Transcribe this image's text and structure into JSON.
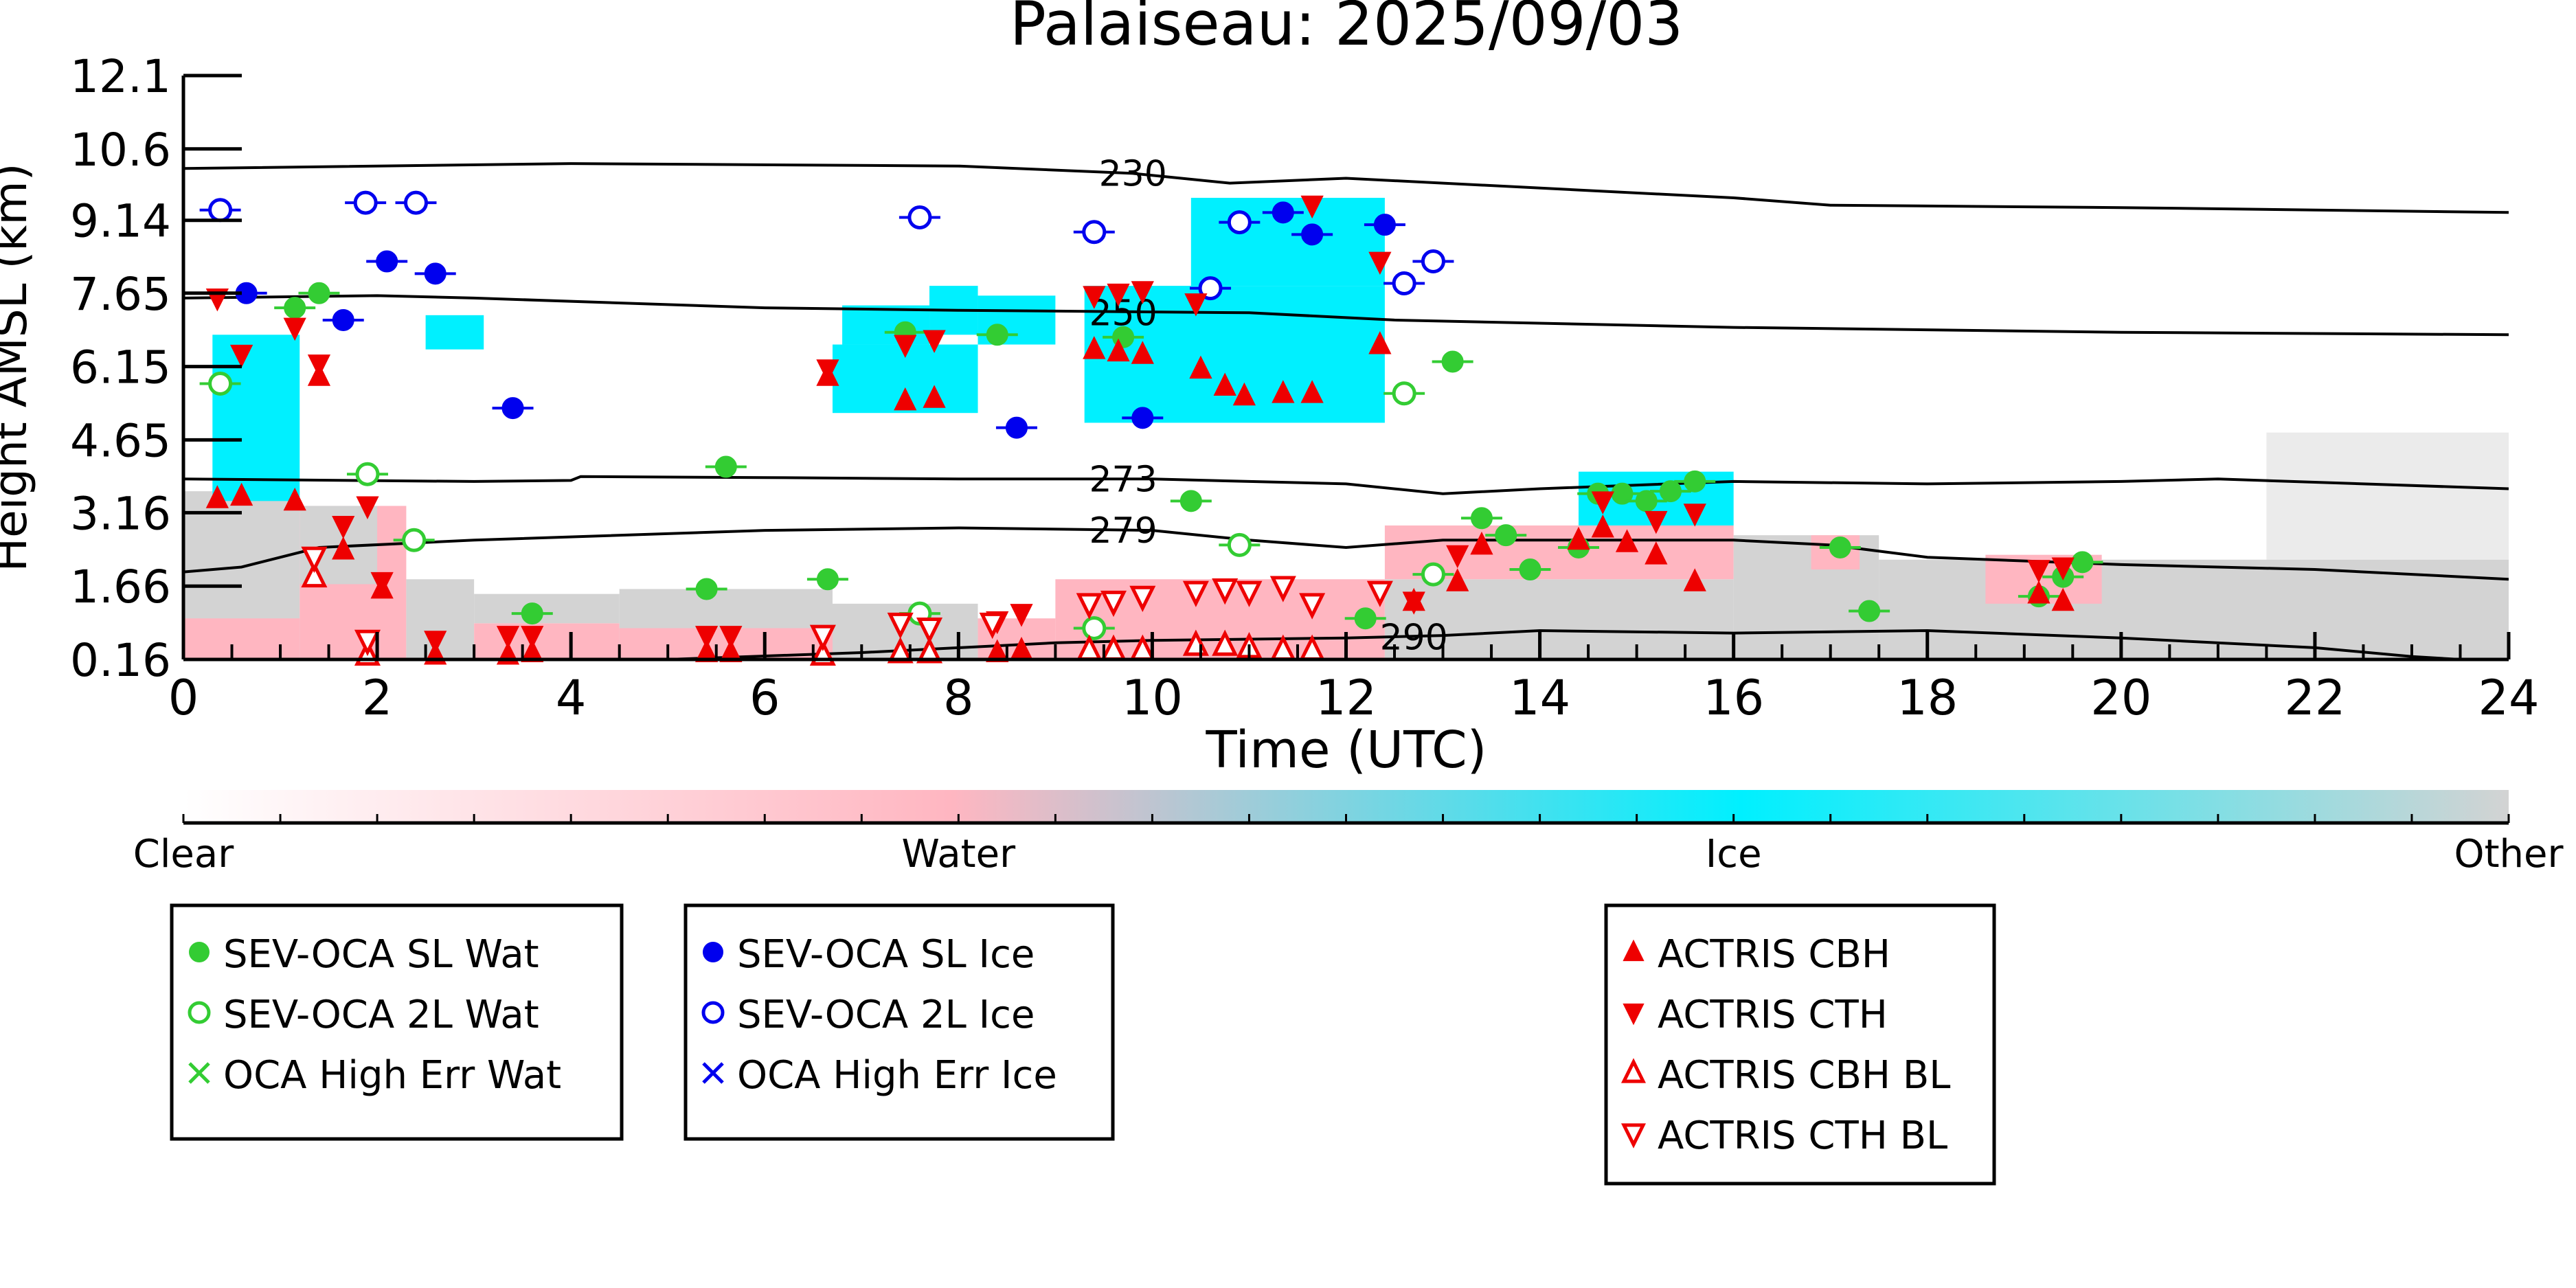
{
  "chart_data": {
    "type": "scatter",
    "title": "Palaiseau: 2025/09/03",
    "xlabel": "Time (UTC)",
    "ylabel": "Height AMSL (km)",
    "xlim": [
      0,
      24
    ],
    "ylim": [
      0.16,
      12.1
    ],
    "x_ticks": [
      "0",
      "2",
      "4",
      "6",
      "8",
      "10",
      "12",
      "14",
      "16",
      "18",
      "20",
      "22",
      "24"
    ],
    "y_ticks": [
      "0.16",
      "1.66",
      "3.16",
      "4.65",
      "6.15",
      "7.65",
      "9.14",
      "10.6",
      "12.1"
    ],
    "y_tick_values": [
      0.16,
      1.66,
      3.16,
      4.65,
      6.15,
      7.65,
      9.14,
      10.6,
      12.1
    ],
    "colorbar": {
      "labels": [
        "Clear",
        "Water",
        "Ice",
        "Other"
      ],
      "colors": {
        "clear": "#ffffff",
        "water": "#ffb6c1",
        "ice": "#00f0ff",
        "other": "#d3d3d3"
      }
    },
    "contours": [
      {
        "label": "230",
        "points": [
          [
            0,
            10.2
          ],
          [
            4,
            10.3
          ],
          [
            8,
            10.25
          ],
          [
            9.8,
            10.1
          ],
          [
            10.8,
            9.9
          ],
          [
            12,
            10.0
          ],
          [
            13,
            9.9
          ],
          [
            16,
            9.6
          ],
          [
            17,
            9.45
          ],
          [
            20,
            9.4
          ],
          [
            24,
            9.3
          ]
        ]
      },
      {
        "label": "250",
        "points": [
          [
            0,
            7.55
          ],
          [
            2,
            7.6
          ],
          [
            3,
            7.55
          ],
          [
            6,
            7.35
          ],
          [
            8,
            7.3
          ],
          [
            11,
            7.25
          ],
          [
            12.5,
            7.1
          ],
          [
            16,
            6.95
          ],
          [
            20,
            6.85
          ],
          [
            24,
            6.8
          ]
        ]
      },
      {
        "label": "273",
        "points": [
          [
            0,
            3.85
          ],
          [
            3,
            3.8
          ],
          [
            4,
            3.82
          ],
          [
            4.1,
            3.9
          ],
          [
            6,
            3.88
          ],
          [
            8,
            3.85
          ],
          [
            10,
            3.85
          ],
          [
            12,
            3.75
          ],
          [
            13,
            3.55
          ],
          [
            14,
            3.65
          ],
          [
            16,
            3.8
          ],
          [
            18,
            3.75
          ],
          [
            20,
            3.8
          ],
          [
            21,
            3.85
          ],
          [
            24,
            3.65
          ]
        ]
      },
      {
        "label": "279",
        "points": [
          [
            0,
            1.95
          ],
          [
            0.6,
            2.05
          ],
          [
            1.4,
            2.45
          ],
          [
            3,
            2.6
          ],
          [
            6,
            2.8
          ],
          [
            8,
            2.85
          ],
          [
            10,
            2.8
          ],
          [
            10.5,
            2.7
          ],
          [
            11,
            2.6
          ],
          [
            12,
            2.45
          ],
          [
            13,
            2.6
          ],
          [
            16,
            2.6
          ],
          [
            17,
            2.5
          ],
          [
            18,
            2.25
          ],
          [
            20,
            2.1
          ],
          [
            22,
            2.0
          ],
          [
            24,
            1.8
          ]
        ]
      },
      {
        "label": "290",
        "points": [
          [
            5,
            0.16
          ],
          [
            7,
            0.3
          ],
          [
            9,
            0.5
          ],
          [
            10,
            0.55
          ],
          [
            12,
            0.6
          ],
          [
            13,
            0.65
          ],
          [
            14,
            0.75
          ],
          [
            16,
            0.7
          ],
          [
            18,
            0.75
          ],
          [
            20,
            0.6
          ],
          [
            22,
            0.4
          ],
          [
            23,
            0.22
          ],
          [
            23.5,
            0.16
          ]
        ]
      }
    ],
    "series": [
      {
        "name": "SEV-OCA SL Wat",
        "marker": "filled-circle",
        "color": "#33cc33",
        "points": [
          [
            1.15,
            7.35
          ],
          [
            1.4,
            7.65
          ],
          [
            3.6,
            1.1
          ],
          [
            5.4,
            1.6
          ],
          [
            5.6,
            4.1
          ],
          [
            6.65,
            1.8
          ],
          [
            7.45,
            6.85
          ],
          [
            8.4,
            6.8
          ],
          [
            9.7,
            6.75
          ],
          [
            10.4,
            3.4
          ],
          [
            12.2,
            1.0
          ],
          [
            13.1,
            6.25
          ],
          [
            13.4,
            3.05
          ],
          [
            13.65,
            2.7
          ],
          [
            13.9,
            2.0
          ],
          [
            14.4,
            2.45
          ],
          [
            14.6,
            3.55
          ],
          [
            14.85,
            3.55
          ],
          [
            15.1,
            3.4
          ],
          [
            15.35,
            3.6
          ],
          [
            15.6,
            3.8
          ],
          [
            17.1,
            2.45
          ],
          [
            17.4,
            1.15
          ],
          [
            19.15,
            1.45
          ],
          [
            19.4,
            1.85
          ],
          [
            19.6,
            2.15
          ]
        ]
      },
      {
        "name": "SEV-OCA 2L Wat",
        "marker": "open-circle",
        "color": "#33cc33",
        "points": [
          [
            0.38,
            5.8
          ],
          [
            1.9,
            3.95
          ],
          [
            2.38,
            2.6
          ],
          [
            7.6,
            1.1
          ],
          [
            9.4,
            0.8
          ],
          [
            10.9,
            2.5
          ],
          [
            12.6,
            5.6
          ],
          [
            12.9,
            1.9
          ]
        ]
      },
      {
        "name": "OCA High Err Wat",
        "marker": "cross",
        "color": "#33cc33",
        "points": []
      },
      {
        "name": "SEV-OCA SL Ice",
        "marker": "filled-circle",
        "color": "#0000ee",
        "points": [
          [
            0.65,
            7.65
          ],
          [
            1.65,
            7.1
          ],
          [
            2.1,
            8.3
          ],
          [
            2.6,
            8.05
          ],
          [
            3.4,
            5.3
          ],
          [
            8.6,
            4.9
          ],
          [
            9.9,
            5.1
          ],
          [
            11.35,
            9.3
          ],
          [
            11.65,
            8.85
          ],
          [
            12.4,
            9.05
          ]
        ]
      },
      {
        "name": "SEV-OCA 2L Ice",
        "marker": "open-circle",
        "color": "#0000ee",
        "points": [
          [
            0.38,
            9.35
          ],
          [
            1.88,
            9.5
          ],
          [
            2.4,
            9.5
          ],
          [
            7.6,
            9.2
          ],
          [
            9.4,
            8.9
          ],
          [
            10.6,
            7.75
          ],
          [
            10.9,
            9.1
          ],
          [
            12.6,
            7.85
          ],
          [
            12.9,
            8.3
          ]
        ]
      },
      {
        "name": "OCA High Err Ice",
        "marker": "cross",
        "color": "#0000ee",
        "points": []
      },
      {
        "name": "ACTRIS CBH",
        "marker": "triangle-up",
        "color": "#ee0000",
        "points": [
          [
            0.35,
            3.45
          ],
          [
            0.6,
            3.5
          ],
          [
            1.15,
            3.4
          ],
          [
            1.4,
            5.95
          ],
          [
            1.65,
            2.4
          ],
          [
            2.05,
            1.6
          ],
          [
            2.6,
            0.25
          ],
          [
            3.35,
            0.25
          ],
          [
            3.6,
            0.3
          ],
          [
            5.4,
            0.3
          ],
          [
            5.65,
            0.3
          ],
          [
            6.65,
            5.95
          ],
          [
            7.45,
            5.45
          ],
          [
            7.75,
            5.5
          ],
          [
            8.4,
            0.3
          ],
          [
            8.65,
            0.35
          ],
          [
            9.4,
            6.5
          ],
          [
            9.65,
            6.45
          ],
          [
            9.9,
            6.4
          ],
          [
            10.5,
            6.1
          ],
          [
            10.75,
            5.75
          ],
          [
            10.95,
            5.55
          ],
          [
            11.35,
            5.6
          ],
          [
            11.65,
            5.6
          ],
          [
            12.35,
            6.6
          ],
          [
            12.7,
            1.35
          ],
          [
            13.15,
            1.75
          ],
          [
            13.4,
            2.5
          ],
          [
            14.4,
            2.6
          ],
          [
            14.65,
            2.85
          ],
          [
            14.9,
            2.55
          ],
          [
            15.2,
            2.3
          ],
          [
            15.6,
            1.75
          ],
          [
            19.15,
            1.5
          ],
          [
            19.4,
            1.35
          ]
        ]
      },
      {
        "name": "ACTRIS CTH",
        "marker": "triangle-down",
        "color": "#ee0000",
        "points": [
          [
            0.35,
            7.55
          ],
          [
            0.6,
            6.4
          ],
          [
            1.15,
            6.95
          ],
          [
            1.4,
            6.2
          ],
          [
            1.65,
            2.9
          ],
          [
            1.9,
            3.3
          ],
          [
            2.05,
            1.75
          ],
          [
            2.6,
            0.55
          ],
          [
            3.35,
            0.65
          ],
          [
            3.6,
            0.65
          ],
          [
            5.4,
            0.65
          ],
          [
            5.65,
            0.65
          ],
          [
            6.65,
            6.1
          ],
          [
            7.45,
            6.6
          ],
          [
            7.75,
            6.7
          ],
          [
            8.4,
            0.95
          ],
          [
            8.65,
            1.1
          ],
          [
            9.4,
            7.6
          ],
          [
            9.65,
            7.65
          ],
          [
            9.9,
            7.7
          ],
          [
            10.45,
            7.45
          ],
          [
            11.65,
            9.45
          ],
          [
            12.35,
            8.3
          ],
          [
            12.7,
            1.35
          ],
          [
            13.15,
            2.3
          ],
          [
            14.65,
            3.4
          ],
          [
            15.2,
            3.0
          ],
          [
            15.6,
            3.15
          ],
          [
            19.15,
            2.0
          ],
          [
            19.4,
            2.05
          ]
        ]
      },
      {
        "name": "ACTRIS CBH BL",
        "marker": "open-triangle-up",
        "color": "#ee0000",
        "points": [
          [
            1.35,
            1.85
          ],
          [
            1.9,
            0.25
          ],
          [
            6.6,
            0.25
          ],
          [
            7.4,
            0.3
          ],
          [
            7.7,
            0.3
          ],
          [
            9.35,
            0.35
          ],
          [
            9.6,
            0.35
          ],
          [
            9.9,
            0.35
          ],
          [
            10.45,
            0.45
          ],
          [
            10.75,
            0.45
          ],
          [
            11.0,
            0.4
          ],
          [
            11.35,
            0.35
          ],
          [
            11.65,
            0.35
          ]
        ]
      },
      {
        "name": "ACTRIS CTH BL",
        "marker": "open-triangle-down",
        "color": "#ee0000",
        "points": [
          [
            1.35,
            2.25
          ],
          [
            1.9,
            0.55
          ],
          [
            6.6,
            0.65
          ],
          [
            7.4,
            0.9
          ],
          [
            7.7,
            0.8
          ],
          [
            8.35,
            0.9
          ],
          [
            9.35,
            1.3
          ],
          [
            9.6,
            1.35
          ],
          [
            9.9,
            1.45
          ],
          [
            10.45,
            1.55
          ],
          [
            10.75,
            1.6
          ],
          [
            11.0,
            1.55
          ],
          [
            11.35,
            1.65
          ],
          [
            11.65,
            1.3
          ],
          [
            12.35,
            1.55
          ]
        ]
      }
    ],
    "legends": [
      [
        "SEV-OCA SL Wat",
        "SEV-OCA 2L Wat",
        "OCA High Err Wat"
      ],
      [
        "SEV-OCA SL Ice",
        "SEV-OCA 2L Ice",
        "OCA High Err Ice"
      ],
      [
        "ACTRIS CBH",
        "ACTRIS CTH",
        "ACTRIS CBH BL",
        "ACTRIS CTH BL"
      ]
    ]
  }
}
